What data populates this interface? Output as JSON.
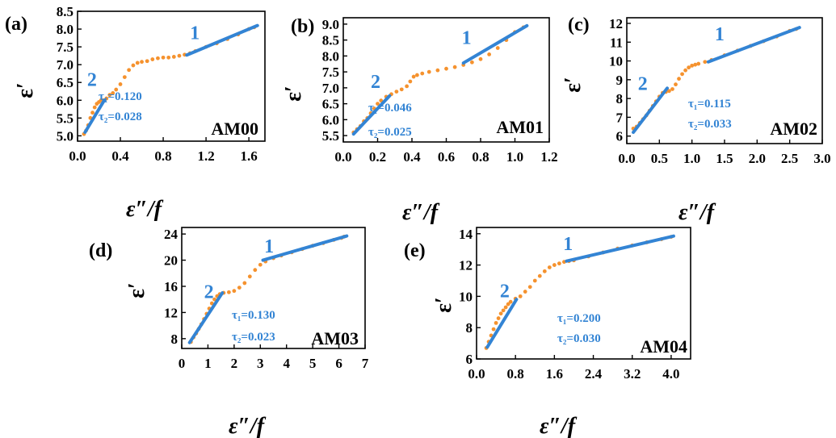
{
  "colors": {
    "data": "#f5922e",
    "fit": "#3384d4",
    "axis": "#000000"
  },
  "chart_data": [
    {
      "type": "scatter",
      "panel_label": "(a)",
      "sample": "AM00",
      "xlabel": "ε″/f",
      "ylabel": "ε′",
      "xlim": [
        0.0,
        1.75
      ],
      "ylim": [
        4.85,
        8.5
      ],
      "xticks": [
        0.0,
        0.4,
        0.8,
        1.2,
        1.6
      ],
      "xtick_labels": [
        "0.0",
        "0.4",
        "0.8",
        "1.2",
        "1.6"
      ],
      "yticks": [
        5.0,
        5.5,
        6.0,
        6.5,
        7.0,
        7.5,
        8.0,
        8.5
      ],
      "ytick_labels": [
        "5.0",
        "5.5",
        "6.0",
        "6.5",
        "7.0",
        "7.5",
        "8.0",
        "8.5"
      ],
      "series": [
        {
          "x": [
            0.06,
            0.08,
            0.1,
            0.12,
            0.14,
            0.16,
            0.18,
            0.2,
            0.22,
            0.24,
            0.27,
            0.3,
            0.33,
            0.36,
            0.4,
            0.44,
            0.48,
            0.52,
            0.56,
            0.6,
            0.65,
            0.7,
            0.75,
            0.8,
            0.85,
            0.9,
            0.95,
            1.0,
            1.05,
            1.1,
            1.2,
            1.3,
            1.4,
            1.5,
            1.6,
            1.65
          ],
          "y": [
            5.05,
            5.15,
            5.3,
            5.5,
            5.65,
            5.8,
            5.9,
            5.95,
            6.0,
            6.0,
            6.05,
            6.15,
            6.2,
            6.3,
            6.45,
            6.65,
            6.85,
            6.98,
            7.05,
            7.08,
            7.1,
            7.15,
            7.18,
            7.2,
            7.2,
            7.22,
            7.25,
            7.28,
            7.32,
            7.38,
            7.5,
            7.6,
            7.72,
            7.85,
            8.0,
            8.05
          ]
        }
      ],
      "fits": [
        {
          "label": "1",
          "x": [
            1.02,
            1.68
          ],
          "y": [
            7.27,
            8.1
          ],
          "label_at": [
            1.05,
            7.72
          ]
        },
        {
          "label": "2",
          "x": [
            0.07,
            0.25
          ],
          "y": [
            5.1,
            6.0
          ],
          "label_at": [
            0.09,
            6.4
          ]
        }
      ],
      "taus": [
        "τ₁=0.120",
        "τ₂=0.028"
      ]
    },
    {
      "type": "scatter",
      "panel_label": "(b)",
      "sample": "AM01",
      "xlabel": "ε″/f",
      "ylabel": "ε′",
      "xlim": [
        0.0,
        1.2
      ],
      "ylim": [
        5.3,
        9.2
      ],
      "xticks": [
        0.0,
        0.2,
        0.4,
        0.6,
        0.8,
        1.0,
        1.2
      ],
      "xtick_labels": [
        "0.0",
        "0.2",
        "0.4",
        "0.6",
        "0.8",
        "1.0",
        "1.2"
      ],
      "yticks": [
        5.5,
        6.0,
        6.5,
        7.0,
        7.5,
        8.0,
        8.5,
        9.0
      ],
      "ytick_labels": [
        "5.5",
        "6.0",
        "6.5",
        "7.0",
        "7.5",
        "8.0",
        "8.5",
        "9.0"
      ],
      "series": [
        {
          "x": [
            0.06,
            0.08,
            0.1,
            0.12,
            0.14,
            0.16,
            0.18,
            0.2,
            0.22,
            0.25,
            0.28,
            0.31,
            0.34,
            0.37,
            0.39,
            0.41,
            0.43,
            0.46,
            0.5,
            0.55,
            0.6,
            0.65,
            0.7,
            0.75,
            0.8,
            0.85,
            0.9,
            0.95,
            1.0,
            1.05
          ],
          "y": [
            5.6,
            5.7,
            5.8,
            5.95,
            6.05,
            6.2,
            6.35,
            6.5,
            6.6,
            6.72,
            6.8,
            6.88,
            6.95,
            7.05,
            7.2,
            7.35,
            7.4,
            7.45,
            7.5,
            7.55,
            7.6,
            7.65,
            7.72,
            7.8,
            7.9,
            8.05,
            8.25,
            8.5,
            8.75,
            8.9
          ]
        }
      ],
      "fits": [
        {
          "label": "1",
          "x": [
            0.7,
            1.07
          ],
          "y": [
            7.78,
            8.95
          ],
          "label_at": [
            0.69,
            8.38
          ]
        },
        {
          "label": "2",
          "x": [
            0.06,
            0.27
          ],
          "y": [
            5.55,
            6.75
          ],
          "label_at": [
            0.16,
            7.0
          ]
        }
      ],
      "taus": [
        "τ₁=0.046",
        "τ₂=0.025"
      ]
    },
    {
      "type": "scatter",
      "panel_label": "(c)",
      "sample": "AM02",
      "xlabel": "ε″/f",
      "ylabel": "ε′",
      "xlim": [
        0.0,
        3.0
      ],
      "ylim": [
        5.6,
        12.3
      ],
      "xticks": [
        0.0,
        0.5,
        1.0,
        1.5,
        2.0,
        2.5,
        3.0
      ],
      "xtick_labels": [
        "0.0",
        "0.5",
        "1.0",
        "1.5",
        "2.0",
        "2.5",
        "3.0"
      ],
      "yticks": [
        6,
        7,
        8,
        9,
        10,
        11,
        12
      ],
      "ytick_labels": [
        "6",
        "7",
        "8",
        "9",
        "10",
        "11",
        "12"
      ],
      "series": [
        {
          "x": [
            0.1,
            0.15,
            0.2,
            0.25,
            0.3,
            0.35,
            0.4,
            0.45,
            0.5,
            0.55,
            0.6,
            0.65,
            0.7,
            0.75,
            0.8,
            0.85,
            0.9,
            0.95,
            1.0,
            1.05,
            1.1,
            1.2,
            1.3,
            1.5,
            1.7,
            1.9,
            2.1,
            2.3,
            2.5,
            2.6
          ],
          "y": [
            6.4,
            6.5,
            6.7,
            6.9,
            7.1,
            7.35,
            7.6,
            7.85,
            8.1,
            8.3,
            8.35,
            8.4,
            8.5,
            8.75,
            9.05,
            9.3,
            9.5,
            9.65,
            9.75,
            9.8,
            9.85,
            9.95,
            10.05,
            10.3,
            10.55,
            10.8,
            11.05,
            11.3,
            11.6,
            11.7
          ]
        }
      ],
      "fits": [
        {
          "label": "1",
          "x": [
            1.25,
            2.65
          ],
          "y": [
            9.95,
            11.78
          ],
          "label_at": [
            1.35,
            11.1
          ]
        },
        {
          "label": "2",
          "x": [
            0.1,
            0.62
          ],
          "y": [
            6.2,
            8.55
          ],
          "label_at": [
            0.17,
            8.45
          ]
        }
      ],
      "taus": [
        "τ₁=0.115",
        "τ₂=0.033"
      ]
    },
    {
      "type": "scatter",
      "panel_label": "(d)",
      "sample": "AM03",
      "xlabel": "ε″/f",
      "ylabel": "ε′",
      "xlim": [
        0,
        7
      ],
      "ylim": [
        6.5,
        25
      ],
      "xticks": [
        0,
        1,
        2,
        3,
        4,
        5,
        6,
        7
      ],
      "xtick_labels": [
        "0",
        "1",
        "2",
        "3",
        "4",
        "5",
        "6",
        "7"
      ],
      "yticks": [
        8,
        12,
        16,
        20,
        24
      ],
      "ytick_labels": [
        "8",
        "12",
        "16",
        "20",
        "24"
      ],
      "series": [
        {
          "x": [
            0.35,
            0.45,
            0.55,
            0.65,
            0.75,
            0.85,
            0.95,
            1.05,
            1.15,
            1.25,
            1.35,
            1.45,
            1.6,
            1.8,
            2.0,
            2.2,
            2.4,
            2.6,
            2.8,
            3.0,
            3.2,
            3.5,
            3.8,
            4.2,
            4.6,
            5.0,
            5.4,
            5.8,
            6.1,
            6.2
          ],
          "y": [
            7.5,
            8.2,
            8.8,
            9.5,
            10.2,
            11.0,
            11.8,
            12.6,
            13.4,
            14.0,
            14.5,
            14.8,
            15.0,
            15.1,
            15.3,
            15.8,
            16.5,
            17.5,
            18.5,
            19.3,
            19.8,
            20.3,
            20.7,
            21.2,
            21.7,
            22.2,
            22.6,
            23.1,
            23.4,
            23.6
          ]
        }
      ],
      "fits": [
        {
          "label": "1",
          "x": [
            3.1,
            6.3
          ],
          "y": [
            20.0,
            23.7
          ],
          "label_at": [
            3.15,
            21.2
          ]
        },
        {
          "label": "2",
          "x": [
            0.3,
            1.55
          ],
          "y": [
            7.4,
            15.0
          ],
          "label_at": [
            0.85,
            14.2
          ]
        }
      ],
      "taus": [
        "τ₁=0.130",
        "τ₂=0.023"
      ]
    },
    {
      "type": "scatter",
      "panel_label": "(e)",
      "sample": "AM04",
      "xlabel": "ε″/f",
      "ylabel": "ε′",
      "xlim": [
        0.0,
        4.4
      ],
      "ylim": [
        6.0,
        14.4
      ],
      "xticks": [
        0.0,
        0.8,
        1.6,
        2.4,
        3.2,
        4.0
      ],
      "xtick_labels": [
        "0.0",
        "0.8",
        "1.6",
        "2.4",
        "3.2",
        "4.0"
      ],
      "yticks": [
        6,
        8,
        10,
        12,
        14
      ],
      "ytick_labels": [
        "6",
        "8",
        "10",
        "12",
        "14"
      ],
      "series": [
        {
          "x": [
            0.2,
            0.25,
            0.3,
            0.35,
            0.4,
            0.45,
            0.5,
            0.55,
            0.6,
            0.65,
            0.7,
            0.8,
            0.9,
            1.0,
            1.1,
            1.2,
            1.3,
            1.4,
            1.5,
            1.6,
            1.7,
            1.8,
            1.9,
            2.0,
            2.3,
            2.6,
            2.9,
            3.2,
            3.5,
            3.8,
            4.0
          ],
          "y": [
            6.7,
            7.1,
            7.5,
            7.9,
            8.3,
            8.6,
            8.9,
            9.1,
            9.3,
            9.5,
            9.65,
            9.85,
            10.0,
            10.3,
            10.6,
            11.0,
            11.3,
            11.6,
            11.85,
            12.0,
            12.1,
            12.2,
            12.25,
            12.3,
            12.55,
            12.8,
            13.05,
            13.25,
            13.45,
            13.65,
            13.8
          ]
        }
      ],
      "fits": [
        {
          "label": "1",
          "x": [
            1.85,
            4.05
          ],
          "y": [
            12.25,
            13.85
          ],
          "label_at": [
            1.78,
            12.95
          ]
        },
        {
          "label": "2",
          "x": [
            0.22,
            0.82
          ],
          "y": [
            6.75,
            9.8
          ],
          "label_at": [
            0.48,
            9.95
          ]
        }
      ],
      "taus": [
        "τ₁=0.200",
        "τ₂=0.030"
      ]
    }
  ]
}
